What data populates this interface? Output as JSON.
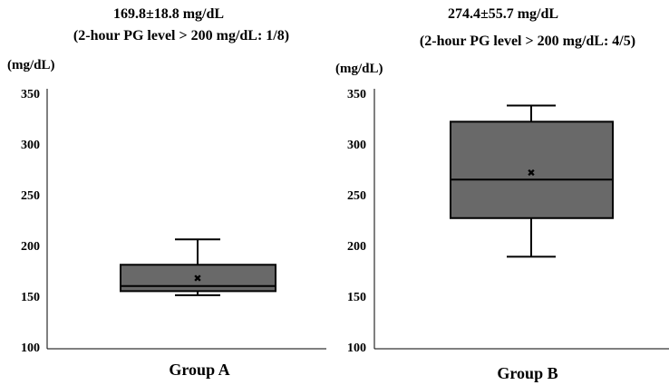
{
  "chart_data": [
    {
      "type": "box",
      "title": "169.8±18.8 mg/dL",
      "subtitle": "(2-hour PG level > 200 mg/dL: 1/8)",
      "ylabel": "(mg/dL)",
      "xlabel": "Group A",
      "ylim": [
        100,
        350
      ],
      "yticks": [
        100,
        150,
        200,
        250,
        300,
        350
      ],
      "box": {
        "whisker_low": 151,
        "q1": 155,
        "median": 160,
        "q3": 181,
        "whisker_high": 206,
        "mean": 168
      },
      "colors": {
        "box_fill": "#696969",
        "stroke": "#000000"
      }
    },
    {
      "type": "box",
      "title": "274.4±55.7 mg/dL",
      "subtitle": "(2-hour PG level > 200 mg/dL: 4/5)",
      "ylabel": "(mg/dL)",
      "xlabel": "Group B",
      "ylim": [
        100,
        350
      ],
      "yticks": [
        100,
        150,
        200,
        250,
        300,
        350
      ],
      "box": {
        "whisker_low": 189,
        "q1": 227,
        "median": 265,
        "q3": 322,
        "whisker_high": 338,
        "mean": 272
      },
      "colors": {
        "box_fill": "#696969",
        "stroke": "#000000"
      }
    }
  ]
}
